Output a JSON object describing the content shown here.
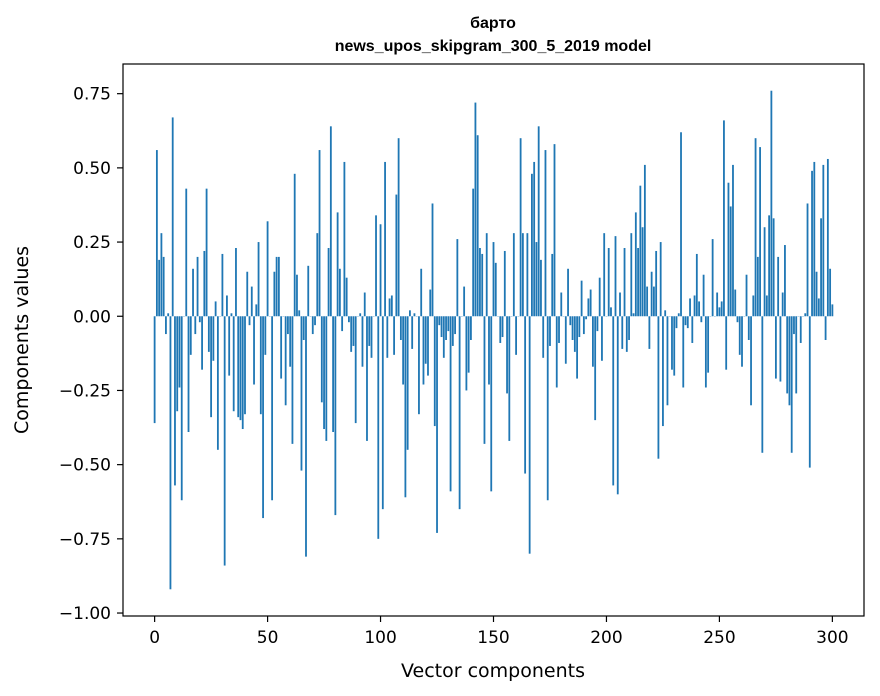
{
  "chart_data": {
    "type": "bar",
    "title": "барто",
    "subtitle": "news_upos_skipgram_300_5_2019 model",
    "xlabel": "Vector components",
    "ylabel": "Components values",
    "xlim": [
      -14,
      314
    ],
    "ylim": [
      -1.01,
      0.85
    ],
    "xticks": [
      0,
      50,
      100,
      150,
      200,
      250,
      300
    ],
    "xtick_labels": [
      "0",
      "50",
      "100",
      "150",
      "200",
      "250",
      "300"
    ],
    "yticks": [
      -1.0,
      -0.75,
      -0.5,
      -0.25,
      0.0,
      0.25,
      0.5,
      0.75
    ],
    "ytick_labels": [
      "−1.00",
      "−0.75",
      "−0.50",
      "−0.25",
      "0.00",
      "0.25",
      "0.50",
      "0.75"
    ],
    "bar_color": "#1f77b4",
    "values": [
      -0.36,
      0.56,
      0.19,
      0.28,
      0.2,
      -0.06,
      0.01,
      -0.92,
      0.67,
      -0.57,
      -0.32,
      -0.24,
      -0.62,
      0.0,
      0.43,
      -0.39,
      -0.13,
      0.16,
      -0.06,
      0.2,
      -0.02,
      -0.18,
      0.22,
      0.43,
      -0.12,
      -0.34,
      -0.15,
      0.05,
      -0.45,
      0.0,
      0.21,
      -0.84,
      0.07,
      -0.2,
      0.01,
      -0.32,
      0.23,
      -0.34,
      -0.35,
      -0.38,
      -0.33,
      0.15,
      -0.03,
      0.1,
      -0.23,
      0.04,
      0.25,
      -0.33,
      -0.68,
      -0.13,
      0.32,
      0.0,
      -0.62,
      0.15,
      0.2,
      0.2,
      -0.21,
      0.0,
      -0.3,
      -0.06,
      -0.17,
      -0.43,
      0.48,
      0.14,
      0.02,
      -0.52,
      -0.08,
      -0.81,
      0.17,
      0.0,
      -0.06,
      -0.03,
      0.28,
      0.56,
      -0.29,
      -0.38,
      -0.42,
      0.23,
      0.64,
      -0.39,
      -0.67,
      0.35,
      0.16,
      -0.05,
      0.52,
      0.13,
      -0.02,
      -0.12,
      -0.1,
      -0.36,
      0.0,
      0.01,
      -0.17,
      0.08,
      -0.42,
      -0.1,
      -0.14,
      0.0,
      0.34,
      -0.75,
      0.31,
      -0.65,
      0.52,
      -0.14,
      0.06,
      0.07,
      -0.13,
      0.41,
      0.6,
      -0.08,
      -0.23,
      -0.61,
      -0.45,
      0.02,
      -0.11,
      0.01,
      0.0,
      -0.33,
      0.16,
      -0.23,
      -0.16,
      -0.2,
      0.09,
      0.38,
      -0.37,
      -0.73,
      -0.03,
      -0.07,
      -0.14,
      -0.08,
      -0.05,
      -0.59,
      -0.1,
      -0.06,
      0.26,
      -0.65,
      0.0,
      0.1,
      -0.25,
      -0.19,
      -0.08,
      0.43,
      0.72,
      0.61,
      0.23,
      0.21,
      -0.43,
      0.28,
      -0.23,
      -0.59,
      0.25,
      0.18,
      0.0,
      -0.09,
      -0.07,
      0.22,
      -0.26,
      -0.42,
      0.0,
      0.28,
      -0.13,
      0.0,
      0.6,
      0.28,
      -0.53,
      0.28,
      -0.8,
      0.48,
      0.52,
      0.25,
      0.64,
      0.19,
      -0.14,
      0.56,
      -0.62,
      -0.1,
      0.21,
      0.58,
      -0.24,
      -0.09,
      0.08,
      0.0,
      -0.16,
      0.16,
      -0.03,
      -0.08,
      -0.12,
      -0.21,
      -0.07,
      0.12,
      -0.06,
      -0.01,
      0.06,
      0.09,
      -0.17,
      -0.35,
      -0.05,
      0.13,
      -0.15,
      0.28,
      0.0,
      0.23,
      0.03,
      -0.57,
      0.27,
      -0.6,
      0.08,
      -0.11,
      0.23,
      -0.12,
      -0.08,
      0.28,
      0.01,
      0.35,
      0.23,
      0.44,
      0.3,
      0.51,
      0.1,
      -0.11,
      0.15,
      0.1,
      0.22,
      -0.48,
      0.25,
      -0.37,
      0.02,
      -0.3,
      0.0,
      -0.18,
      -0.2,
      -0.04,
      0.01,
      0.62,
      -0.24,
      -0.03,
      -0.04,
      0.06,
      -0.09,
      0.07,
      0.21,
      0.05,
      -0.02,
      0.14,
      -0.24,
      -0.19,
      0.0,
      0.26,
      0.0,
      0.08,
      0.03,
      0.05,
      0.66,
      -0.18,
      0.45,
      0.37,
      0.51,
      0.09,
      -0.02,
      -0.13,
      -0.17,
      0.0,
      0.14,
      -0.08,
      -0.3,
      0.07,
      0.6,
      0.2,
      0.57,
      -0.46,
      0.3,
      0.07,
      0.34,
      0.76,
      0.33,
      -0.21,
      0.2,
      -0.22,
      0.08,
      0.24,
      -0.26,
      -0.3,
      -0.46,
      -0.06,
      -0.26,
      0.0,
      -0.09,
      0.0,
      0.01,
      0.38,
      -0.51,
      0.49,
      0.52,
      0.15,
      0.06,
      0.33,
      0.51,
      -0.08,
      0.53,
      0.16,
      0.04
    ]
  }
}
